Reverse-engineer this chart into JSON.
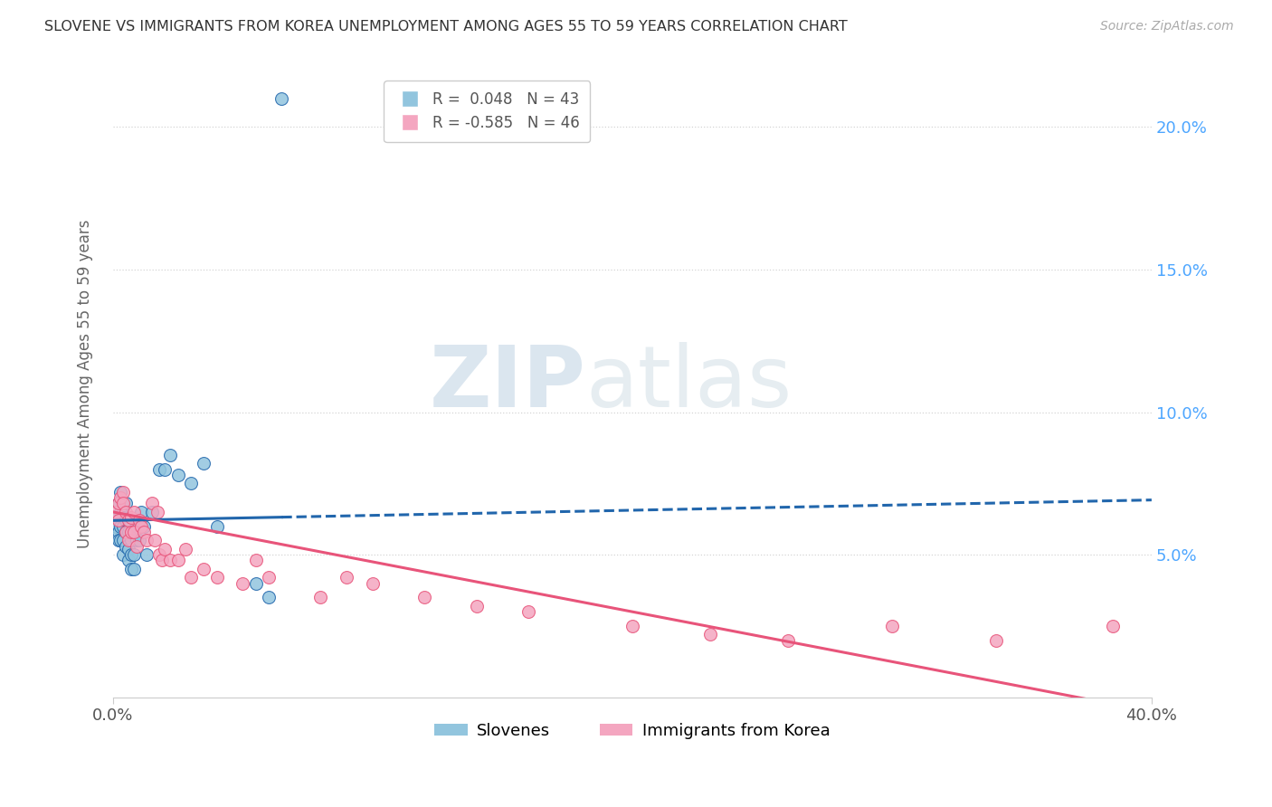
{
  "title": "SLOVENE VS IMMIGRANTS FROM KOREA UNEMPLOYMENT AMONG AGES 55 TO 59 YEARS CORRELATION CHART",
  "source": "Source: ZipAtlas.com",
  "ylabel": "Unemployment Among Ages 55 to 59 years",
  "legend_labels": [
    "Slovenes",
    "Immigrants from Korea"
  ],
  "r_slovene": 0.048,
  "n_slovene": 43,
  "r_korea": -0.585,
  "n_korea": 46,
  "color_slovene": "#92c5de",
  "color_korea": "#f4a6c0",
  "color_trendline_slovene": "#2166ac",
  "color_trendline_korea": "#e8547a",
  "xlim": [
    0.0,
    0.4
  ],
  "ylim": [
    0.0,
    0.22
  ],
  "xtick_vals": [
    0.0,
    0.4
  ],
  "xtick_labels": [
    "0.0%",
    "40.0%"
  ],
  "ytick_vals": [
    0.05,
    0.1,
    0.15,
    0.2
  ],
  "ytick_labels": [
    "5.0%",
    "10.0%",
    "15.0%",
    "20.0%"
  ],
  "trendline_slovene_intercept": 0.062,
  "trendline_slovene_slope": 0.018,
  "trendline_korea_intercept": 0.065,
  "trendline_korea_slope": -0.175,
  "slovene_x": [
    0.001,
    0.001,
    0.002,
    0.002,
    0.002,
    0.003,
    0.003,
    0.003,
    0.003,
    0.004,
    0.004,
    0.004,
    0.004,
    0.005,
    0.005,
    0.005,
    0.005,
    0.006,
    0.006,
    0.006,
    0.006,
    0.007,
    0.007,
    0.007,
    0.008,
    0.008,
    0.009,
    0.009,
    0.01,
    0.011,
    0.012,
    0.013,
    0.015,
    0.018,
    0.02,
    0.022,
    0.025,
    0.03,
    0.035,
    0.04,
    0.055,
    0.06,
    0.065
  ],
  "slovene_y": [
    0.063,
    0.06,
    0.068,
    0.058,
    0.055,
    0.072,
    0.065,
    0.06,
    0.055,
    0.063,
    0.06,
    0.055,
    0.05,
    0.068,
    0.062,
    0.058,
    0.053,
    0.062,
    0.058,
    0.052,
    0.048,
    0.055,
    0.05,
    0.045,
    0.05,
    0.045,
    0.06,
    0.055,
    0.055,
    0.065,
    0.06,
    0.05,
    0.065,
    0.08,
    0.08,
    0.085,
    0.078,
    0.075,
    0.082,
    0.06,
    0.04,
    0.035,
    0.21
  ],
  "korea_x": [
    0.001,
    0.002,
    0.002,
    0.003,
    0.004,
    0.004,
    0.005,
    0.005,
    0.006,
    0.006,
    0.007,
    0.007,
    0.008,
    0.008,
    0.009,
    0.01,
    0.011,
    0.012,
    0.013,
    0.015,
    0.016,
    0.017,
    0.018,
    0.019,
    0.02,
    0.022,
    0.025,
    0.028,
    0.03,
    0.035,
    0.04,
    0.05,
    0.055,
    0.06,
    0.08,
    0.09,
    0.1,
    0.12,
    0.14,
    0.16,
    0.2,
    0.23,
    0.26,
    0.3,
    0.34,
    0.385
  ],
  "korea_y": [
    0.065,
    0.068,
    0.062,
    0.07,
    0.072,
    0.068,
    0.065,
    0.058,
    0.062,
    0.055,
    0.063,
    0.058,
    0.065,
    0.058,
    0.053,
    0.062,
    0.06,
    0.058,
    0.055,
    0.068,
    0.055,
    0.065,
    0.05,
    0.048,
    0.052,
    0.048,
    0.048,
    0.052,
    0.042,
    0.045,
    0.042,
    0.04,
    0.048,
    0.042,
    0.035,
    0.042,
    0.04,
    0.035,
    0.032,
    0.03,
    0.025,
    0.022,
    0.02,
    0.025,
    0.02,
    0.025
  ],
  "watermark_zip": "ZIP",
  "watermark_atlas": "atlas",
  "background_color": "#ffffff",
  "grid_color": "#d5d5d5"
}
